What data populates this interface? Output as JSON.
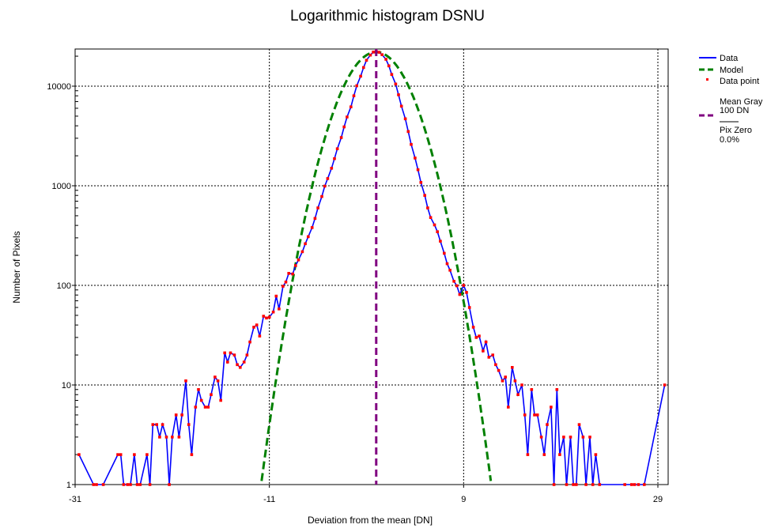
{
  "chart_data": {
    "type": "line",
    "title": "Logarithmic histogram DSNU",
    "xlabel": "Deviation from the mean [DN]",
    "ylabel": "Number of Pixels",
    "xlim": [
      -31,
      30
    ],
    "ylim": [
      1,
      25000
    ],
    "yscale": "log",
    "xticks": [
      -31,
      -11,
      9,
      29
    ],
    "yticks": [
      1,
      10,
      100,
      1000,
      10000
    ],
    "grid": true,
    "legend_position": "right",
    "colors": {
      "data": "#0000ff",
      "model": "#008000",
      "points": "#ff0000",
      "mean": "#800080"
    },
    "legend": {
      "data": "Data",
      "model": "Model",
      "points": "Data point",
      "mean_gray_1": "Mean Gray",
      "mean_gray_2": "100 DN",
      "pix_zero_1": "Pix Zero",
      "pix_zero_2": "0.0%"
    },
    "mean_line_x": 0,
    "model": {
      "peak": 22000,
      "sigma": 2.65,
      "mean": 0
    },
    "series": [
      {
        "name": "Data",
        "points": [
          [
            -30.6,
            2
          ],
          [
            -29.1,
            1
          ],
          [
            -28.8,
            1
          ],
          [
            -28.1,
            1
          ],
          [
            -26.6,
            2
          ],
          [
            -26.3,
            2
          ],
          [
            -26.0,
            1
          ],
          [
            -25.6,
            1
          ],
          [
            -25.3,
            1
          ],
          [
            -24.9,
            2
          ],
          [
            -24.6,
            1
          ],
          [
            -24.3,
            1
          ],
          [
            -23.6,
            2
          ],
          [
            -23.3,
            1
          ],
          [
            -23.0,
            4
          ],
          [
            -22.6,
            4
          ],
          [
            -22.3,
            3
          ],
          [
            -22.0,
            4
          ],
          [
            -21.6,
            3
          ],
          [
            -21.3,
            1
          ],
          [
            -21.0,
            3
          ],
          [
            -20.6,
            5
          ],
          [
            -20.3,
            3
          ],
          [
            -20.0,
            5
          ],
          [
            -19.6,
            11
          ],
          [
            -19.3,
            4
          ],
          [
            -19.0,
            2
          ],
          [
            -18.6,
            6
          ],
          [
            -18.3,
            9
          ],
          [
            -18.0,
            7
          ],
          [
            -17.6,
            6
          ],
          [
            -17.3,
            6
          ],
          [
            -17.0,
            8
          ],
          [
            -16.6,
            12
          ],
          [
            -16.3,
            11
          ],
          [
            -16.0,
            7
          ],
          [
            -15.6,
            21
          ],
          [
            -15.3,
            17
          ],
          [
            -15.0,
            21
          ],
          [
            -14.6,
            20
          ],
          [
            -14.3,
            16
          ],
          [
            -14.0,
            15
          ],
          [
            -13.6,
            17
          ],
          [
            -13.3,
            20
          ],
          [
            -13.0,
            27
          ],
          [
            -12.6,
            38
          ],
          [
            -12.3,
            40
          ],
          [
            -12.0,
            31
          ],
          [
            -11.6,
            49
          ],
          [
            -11.3,
            47
          ],
          [
            -11.0,
            48
          ],
          [
            -10.6,
            54
          ],
          [
            -10.3,
            78
          ],
          [
            -10.0,
            58
          ],
          [
            -9.6,
            98
          ],
          [
            -9.3,
            108
          ],
          [
            -9.0,
            132
          ],
          [
            -8.6,
            130
          ],
          [
            -8.3,
            158
          ],
          [
            -8.0,
            180
          ],
          [
            -7.6,
            218
          ],
          [
            -7.3,
            262
          ],
          [
            -7.0,
            308
          ],
          [
            -6.6,
            380
          ],
          [
            -6.3,
            470
          ],
          [
            -6.0,
            600
          ],
          [
            -5.6,
            780
          ],
          [
            -5.3,
            990
          ],
          [
            -5.0,
            1180
          ],
          [
            -4.6,
            1500
          ],
          [
            -4.3,
            1870
          ],
          [
            -4.0,
            2350
          ],
          [
            -3.6,
            3050
          ],
          [
            -3.3,
            3900
          ],
          [
            -3.0,
            4900
          ],
          [
            -2.6,
            6200
          ],
          [
            -2.3,
            8000
          ],
          [
            -2.0,
            10100
          ],
          [
            -1.6,
            12600
          ],
          [
            -1.3,
            15400
          ],
          [
            -1.0,
            18200
          ],
          [
            -0.6,
            20500
          ],
          [
            -0.3,
            22000
          ],
          [
            0.0,
            22400
          ],
          [
            0.3,
            21900
          ],
          [
            0.6,
            20700
          ],
          [
            1.0,
            18600
          ],
          [
            1.3,
            16000
          ],
          [
            1.6,
            13100
          ],
          [
            2.0,
            10500
          ],
          [
            2.3,
            8200
          ],
          [
            2.6,
            6300
          ],
          [
            3.0,
            4700
          ],
          [
            3.3,
            3500
          ],
          [
            3.6,
            2600
          ],
          [
            4.0,
            1900
          ],
          [
            4.3,
            1450
          ],
          [
            4.6,
            1080
          ],
          [
            5.0,
            800
          ],
          [
            5.3,
            600
          ],
          [
            5.6,
            480
          ],
          [
            6.0,
            405
          ],
          [
            6.3,
            345
          ],
          [
            6.6,
            278
          ],
          [
            7.0,
            210
          ],
          [
            7.3,
            165
          ],
          [
            7.6,
            142
          ],
          [
            8.0,
            110
          ],
          [
            8.3,
            99
          ],
          [
            8.6,
            81
          ],
          [
            9.0,
            100
          ],
          [
            9.3,
            85
          ],
          [
            9.6,
            60
          ],
          [
            10.0,
            38
          ],
          [
            10.3,
            30
          ],
          [
            10.6,
            31
          ],
          [
            11.0,
            22
          ],
          [
            11.3,
            27
          ],
          [
            11.6,
            19
          ],
          [
            12.0,
            20
          ],
          [
            12.3,
            16
          ],
          [
            12.6,
            14
          ],
          [
            13.0,
            11
          ],
          [
            13.3,
            12
          ],
          [
            13.6,
            6
          ],
          [
            14.0,
            15
          ],
          [
            14.3,
            11
          ],
          [
            14.6,
            8
          ],
          [
            15.0,
            10
          ],
          [
            15.3,
            5
          ],
          [
            15.6,
            2
          ],
          [
            16.0,
            9
          ],
          [
            16.3,
            5
          ],
          [
            16.6,
            5
          ],
          [
            17.0,
            3
          ],
          [
            17.3,
            2
          ],
          [
            17.6,
            4
          ],
          [
            18.0,
            6
          ],
          [
            18.3,
            1
          ],
          [
            18.6,
            9
          ],
          [
            18.9,
            2
          ],
          [
            19.3,
            3
          ],
          [
            19.6,
            1
          ],
          [
            20.0,
            3
          ],
          [
            20.3,
            1
          ],
          [
            20.6,
            1
          ],
          [
            20.9,
            4
          ],
          [
            21.3,
            3
          ],
          [
            21.6,
            1
          ],
          [
            22.0,
            3
          ],
          [
            22.3,
            1
          ],
          [
            22.6,
            2
          ],
          [
            23.0,
            1
          ],
          [
            25.6,
            1
          ],
          [
            26.3,
            1
          ],
          [
            26.6,
            1
          ],
          [
            27.0,
            1
          ],
          [
            27.6,
            1
          ],
          [
            29.7,
            10
          ]
        ]
      }
    ]
  }
}
